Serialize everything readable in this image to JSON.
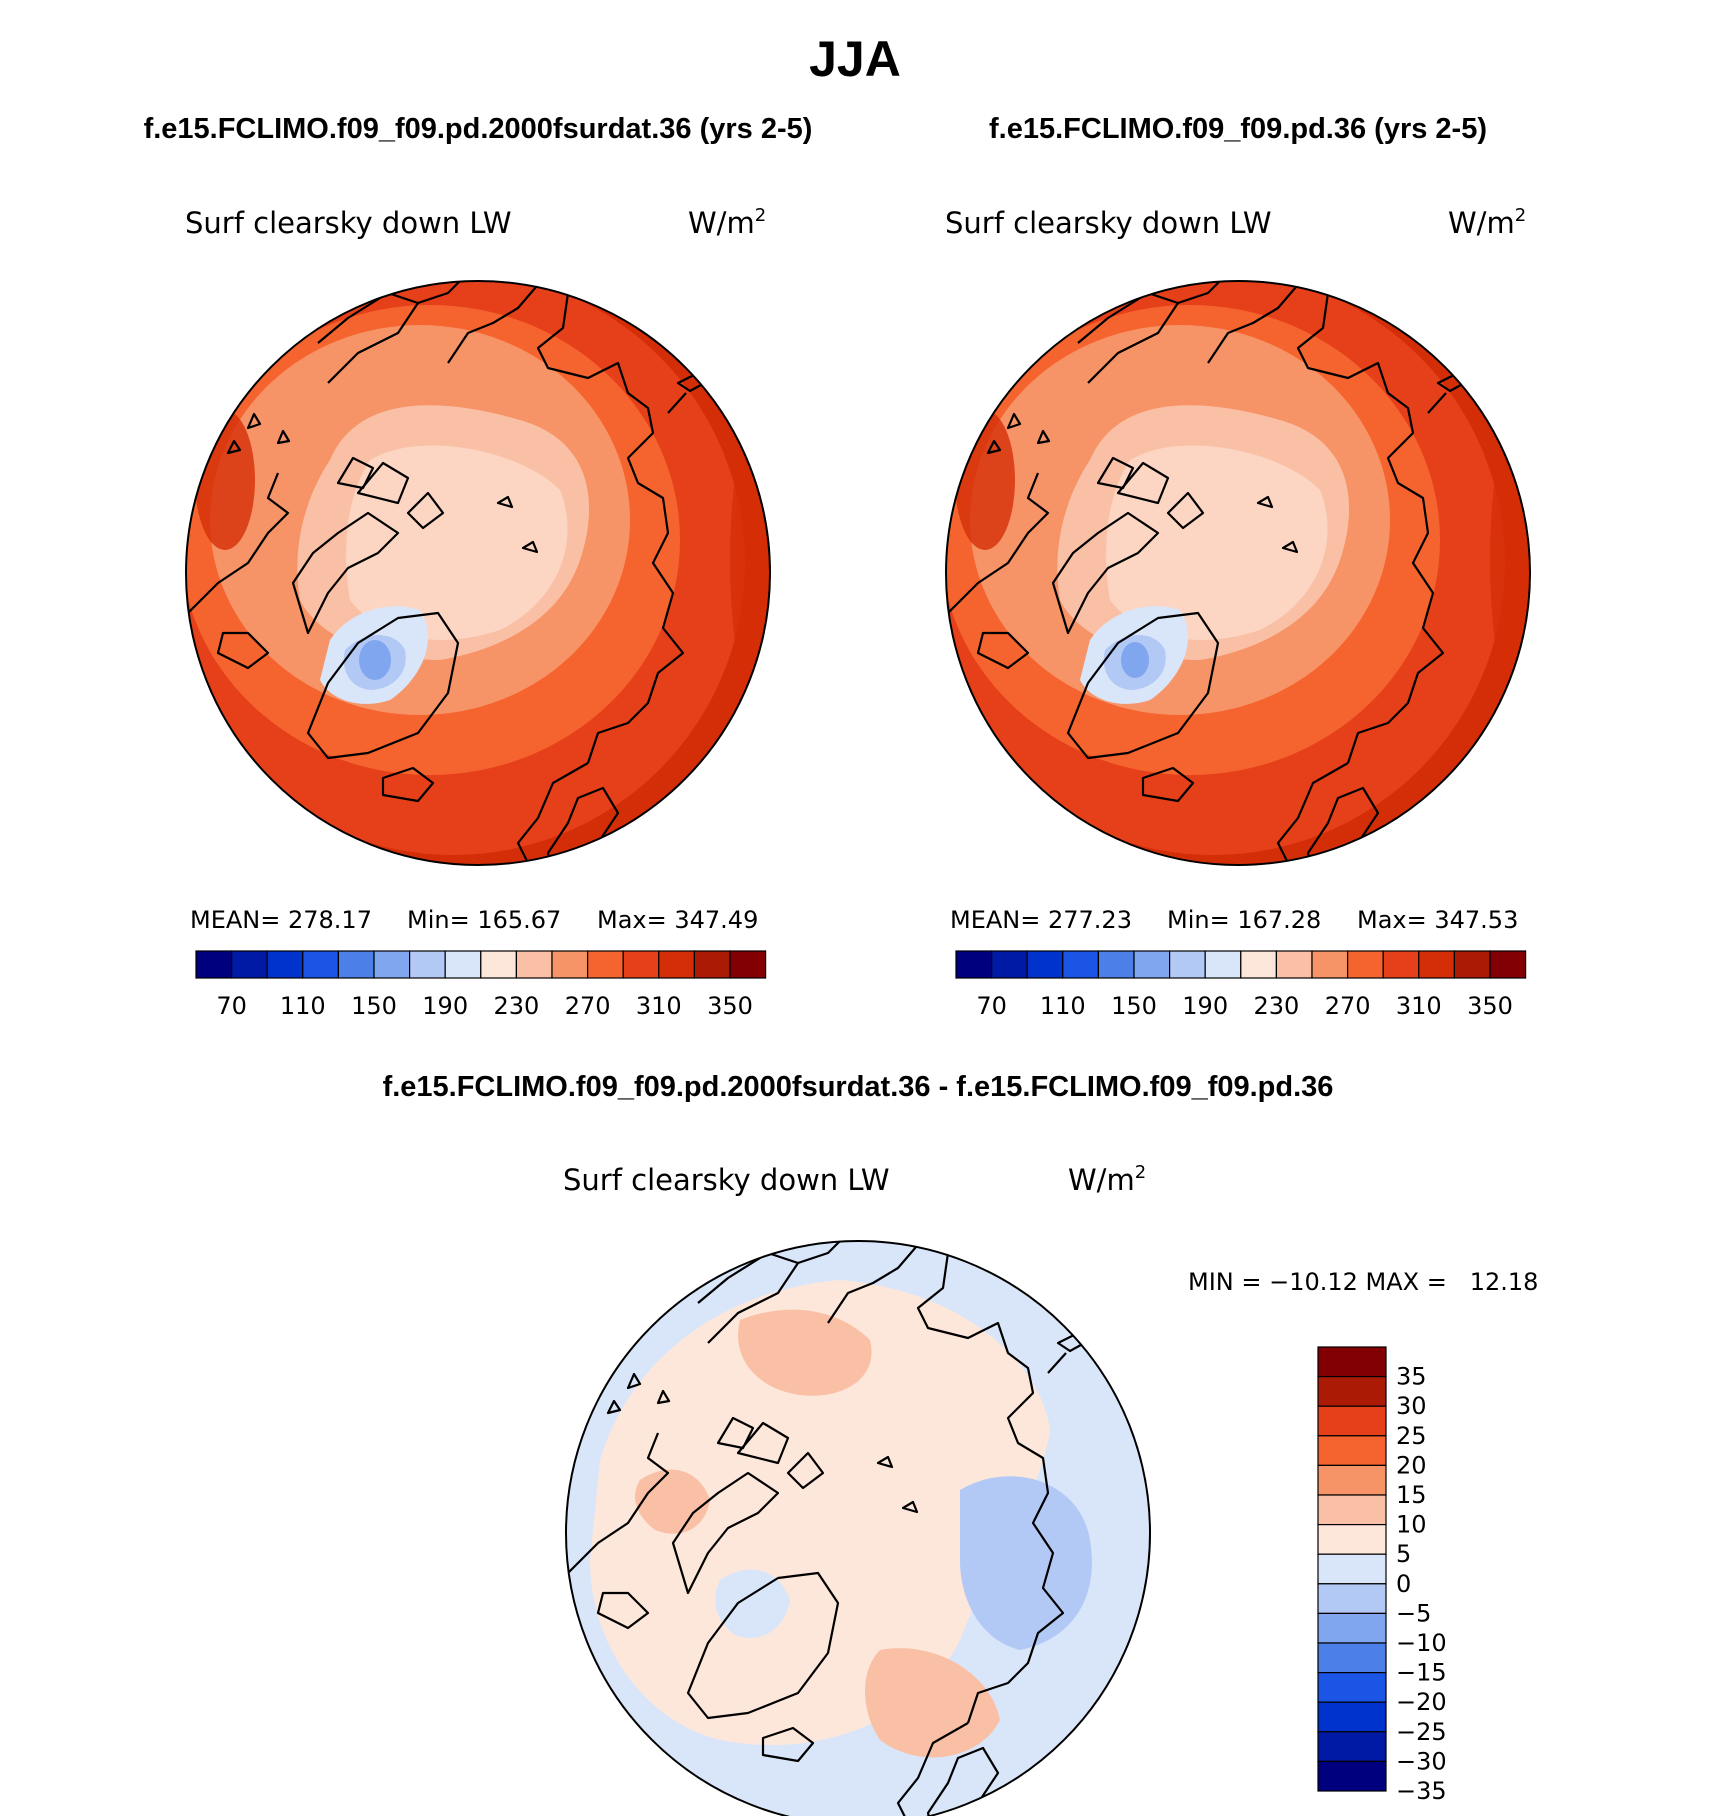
{
  "page_title": "JJA",
  "colors": {
    "warm_scale": [
      "#00007f",
      "#001aa6",
      "#0033cc",
      "#1a55e6",
      "#4d7fe8",
      "#80a6f0",
      "#b3c9f5",
      "#d9e6fa",
      "#fde7da",
      "#fac0a6",
      "#f79467",
      "#f5642e",
      "#e6401a",
      "#d42e08",
      "#aa1a04",
      "#820004"
    ],
    "diff_scale": [
      "#00007f",
      "#001aa6",
      "#0033cc",
      "#1a55e6",
      "#4d7fe8",
      "#80a6f0",
      "#b3c9f5",
      "#d9e6fa",
      "#fde7da",
      "#fac0a6",
      "#f79467",
      "#f5642e",
      "#e6401a",
      "#aa1a04",
      "#820004"
    ]
  },
  "panels": [
    {
      "case_title": "f.e15.FCLIMO.f09_f09.pd.2000fsurdat.36 (yrs 2-5)",
      "variable": "Surf clearsky down LW",
      "units_base": "W/m",
      "units_exp": "2",
      "stats": {
        "mean": "MEAN= 278.17",
        "min": "Min= 165.67",
        "max": "Max= 347.49"
      },
      "colorbar_labels": [
        "70",
        "110",
        "150",
        "190",
        "230",
        "270",
        "310",
        "350"
      ]
    },
    {
      "case_title": "f.e15.FCLIMO.f09_f09.pd.36 (yrs 2-5)",
      "variable": "Surf clearsky down LW",
      "units_base": "W/m",
      "units_exp": "2",
      "stats": {
        "mean": "MEAN= 277.23",
        "min": "Min= 167.28",
        "max": "Max= 347.53"
      },
      "colorbar_labels": [
        "70",
        "110",
        "150",
        "190",
        "230",
        "270",
        "310",
        "350"
      ]
    }
  ],
  "diff_panel": {
    "title": "f.e15.FCLIMO.f09_f09.pd.2000fsurdat.36 - f.e15.FCLIMO.f09_f09.pd.36",
    "variable": "Surf clearsky down LW",
    "units_base": "W/m",
    "units_exp": "2",
    "minmax": "MIN = −10.12 MAX =   12.18",
    "colorbar_labels": [
      "35",
      "30",
      "25",
      "20",
      "15",
      "10",
      "5",
      "0",
      "−5",
      "−10",
      "−15",
      "−20",
      "−25",
      "−30",
      "−35"
    ]
  }
}
